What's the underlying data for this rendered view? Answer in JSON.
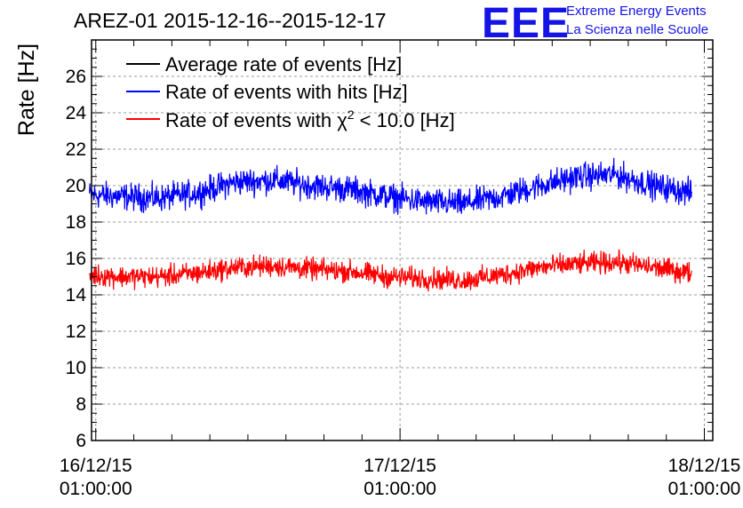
{
  "chart_data": {
    "type": "line",
    "title": "AREZ-01 2015-12-16--2015-12-17",
    "ylabel": "Rate [Hz]",
    "xlabel": "",
    "ylim": [
      6,
      28
    ],
    "y_ticks": [
      6,
      8,
      10,
      12,
      14,
      16,
      18,
      20,
      22,
      24,
      26
    ],
    "x_ticks": [
      {
        "date": "16/12/15",
        "time": "01:00:00"
      },
      {
        "date": "17/12/15",
        "time": "01:00:00"
      },
      {
        "date": "18/12/15",
        "time": "01:00:00"
      }
    ],
    "xlim": [
      "2015-12-16T00:40:00",
      "2015-12-18T01:40:00"
    ],
    "grid": true,
    "legend_position": "top-left",
    "series": [
      {
        "name": "Average rate of events [Hz]",
        "color": "#000000",
        "x": [],
        "y": []
      },
      {
        "name": "Rate of events with hits [Hz]",
        "color": "#0000ff",
        "x": [
          "2015-12-16T00:30:00",
          "2015-12-16T03:00:00",
          "2015-12-16T06:00:00",
          "2015-12-16T09:00:00",
          "2015-12-16T12:00:00",
          "2015-12-16T15:00:00",
          "2015-12-16T18:00:00",
          "2015-12-16T21:00:00",
          "2015-12-17T00:00:00",
          "2015-12-17T03:00:00",
          "2015-12-17T06:00:00",
          "2015-12-17T09:00:00",
          "2015-12-17T12:00:00",
          "2015-12-17T15:00:00",
          "2015-12-17T18:00:00",
          "2015-12-17T21:00:00",
          "2015-12-18T00:00:00"
        ],
        "y": [
          19.5,
          19.4,
          19.3,
          19.6,
          20.2,
          20.3,
          20.0,
          19.8,
          19.4,
          19.1,
          19.0,
          19.4,
          20.0,
          20.5,
          20.6,
          20.0,
          19.6
        ],
        "noise": 1.0
      },
      {
        "name": "Rate of events with χ² < 10.0 [Hz]",
        "label_prefix": "Rate of events with χ",
        "label_sup": "2",
        "label_suffix": " < 10.0 [Hz]",
        "color": "#ff0000",
        "x": [
          "2015-12-16T00:30:00",
          "2015-12-16T03:00:00",
          "2015-12-16T06:00:00",
          "2015-12-16T09:00:00",
          "2015-12-16T12:00:00",
          "2015-12-16T15:00:00",
          "2015-12-16T18:00:00",
          "2015-12-16T21:00:00",
          "2015-12-17T00:00:00",
          "2015-12-17T03:00:00",
          "2015-12-17T06:00:00",
          "2015-12-17T09:00:00",
          "2015-12-17T12:00:00",
          "2015-12-17T15:00:00",
          "2015-12-17T18:00:00",
          "2015-12-17T21:00:00",
          "2015-12-18T00:00:00"
        ],
        "y": [
          15.1,
          15.0,
          15.0,
          15.2,
          15.5,
          15.6,
          15.4,
          15.3,
          15.0,
          14.9,
          14.8,
          15.1,
          15.5,
          15.7,
          15.8,
          15.5,
          15.2
        ],
        "noise": 0.8
      }
    ]
  },
  "logo": {
    "mark": "EEE",
    "line1": "Extreme Energy Events",
    "line2": "La Scienza nelle Scuole"
  }
}
